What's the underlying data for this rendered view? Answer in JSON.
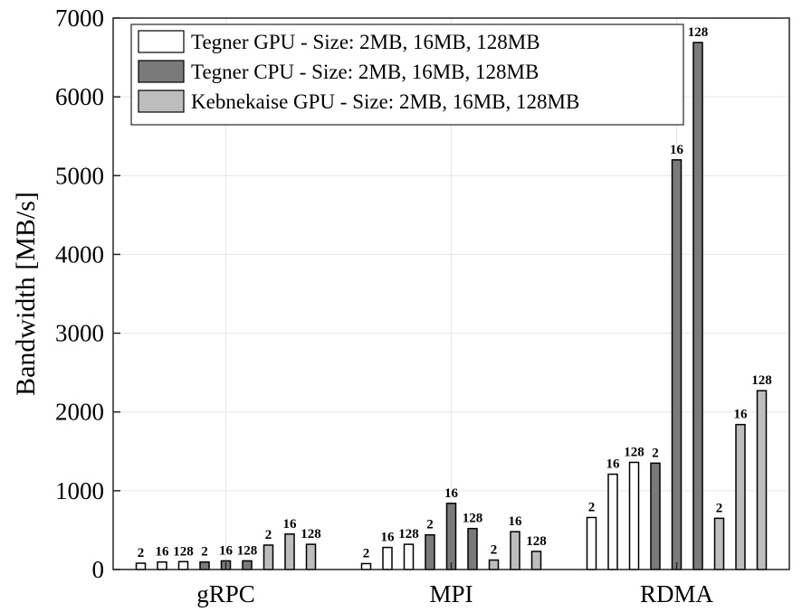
{
  "chart_data": {
    "type": "bar",
    "title": "",
    "xlabel": "",
    "ylabel": "Bandwidth [MB/s]",
    "ylim": [
      0,
      7000
    ],
    "yticks": [
      "0",
      "1000",
      "2000",
      "3000",
      "4000",
      "5000",
      "6000",
      "7000"
    ],
    "categories": [
      "gRPC",
      "MPI",
      "RDMA"
    ],
    "grid": true,
    "legend_position": "top-left",
    "series": [
      {
        "name": "Tegner GPU - Size: 2MB, 16MB, 128MB",
        "color": "#ffffff",
        "bar_labels": [
          "2",
          "16",
          "128"
        ],
        "values": [
          [
            80,
            95,
            100
          ],
          [
            75,
            280,
            320
          ],
          [
            660,
            1210,
            1360
          ]
        ]
      },
      {
        "name": "Tegner CPU - Size: 2MB, 16MB, 128MB",
        "color": "#7a7a7a",
        "bar_labels": [
          "2",
          "16",
          "128"
        ],
        "values": [
          [
            95,
            110,
            110
          ],
          [
            440,
            840,
            520
          ],
          [
            1350,
            5200,
            6690
          ]
        ]
      },
      {
        "name": "Kebnekaise GPU - Size: 2MB, 16MB, 128MB",
        "color": "#bdbdbd",
        "bar_labels": [
          "2",
          "16",
          "128"
        ],
        "values": [
          [
            310,
            450,
            320
          ],
          [
            120,
            480,
            230
          ],
          [
            650,
            1840,
            2270
          ]
        ]
      }
    ]
  }
}
